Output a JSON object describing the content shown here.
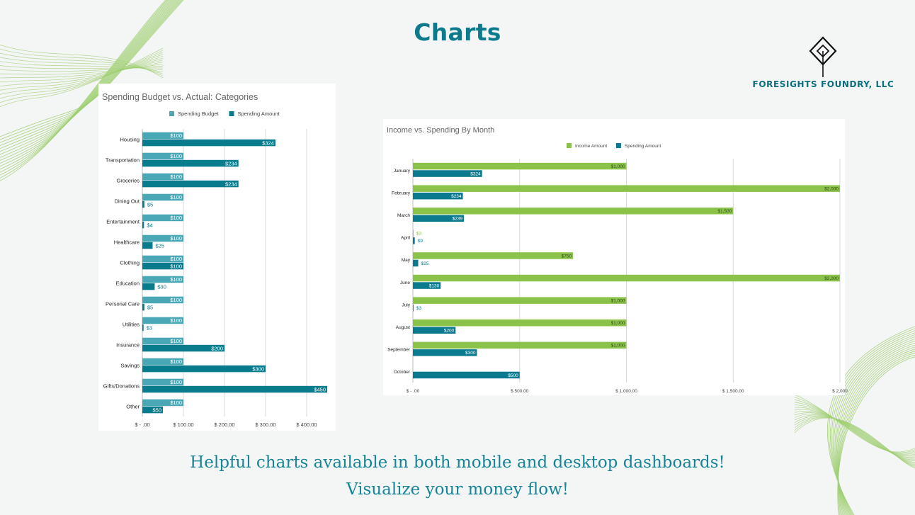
{
  "slide": {
    "title": "Charts",
    "company": "FORESIGHTS FOUNDRY, LLC",
    "caption_line1": "Helpful charts available in both mobile and desktop dashboards!",
    "caption_line2": "Visualize your money flow!"
  },
  "colors": {
    "accent": "#0c7a8c",
    "budget_bar": "#4aa7b5",
    "spending_bar": "#087b8c",
    "income_bar": "#8bc34a",
    "month_spending_bar": "#0b7a8e",
    "decor_lines": "#9fcf72"
  },
  "chart_data": [
    {
      "type": "bar",
      "orientation": "horizontal",
      "title": "Spending Budget vs. Actual: Categories",
      "xlabel": "",
      "ylabel": "",
      "categories": [
        "Housing",
        "Transportation",
        "Groceries",
        "Dining Out",
        "Entertainment",
        "Healthcare",
        "Clothing",
        "Education",
        "Personal Care",
        "Utilities",
        "Insurance",
        "Savings",
        "Gifts/Donations",
        "Other"
      ],
      "series": [
        {
          "name": "Spending Budget",
          "values": [
            100,
            100,
            100,
            100,
            100,
            100,
            100,
            100,
            100,
            100,
            100,
            100,
            100,
            100
          ],
          "labels": [
            "$100",
            "$100",
            "$100",
            "$100",
            "$100",
            "$100",
            "$100",
            "$100",
            "$100",
            "$100",
            "$100",
            "$100",
            "$100",
            "$100"
          ]
        },
        {
          "name": "Spending Amount",
          "values": [
            324,
            234,
            234,
            5,
            4,
            25,
            100,
            30,
            5,
            3,
            200,
            300,
            450,
            50
          ],
          "labels": [
            "$324",
            "$234",
            "$234",
            "$5",
            "$4",
            "$25",
            "$100",
            "$30",
            "$5",
            "$3",
            "$200",
            "$300",
            "$450",
            "$50"
          ]
        }
      ],
      "xlim": [
        0,
        450
      ],
      "xticks": [
        0,
        100,
        200,
        300,
        400
      ],
      "xtick_labels": [
        "$ - .00",
        "$ 100.00",
        "$ 200.00",
        "$ 300.00",
        "$ 400.00"
      ],
      "grid": true,
      "legend": "top"
    },
    {
      "type": "bar",
      "orientation": "horizontal",
      "title": "Income vs. Spending By Month",
      "xlabel": "",
      "ylabel": "",
      "categories": [
        "January",
        "February",
        "March",
        "April",
        "May",
        "June",
        "July",
        "August",
        "September",
        "October"
      ],
      "series": [
        {
          "name": "Income Amount",
          "values": [
            1000,
            2000,
            1500,
            3,
            750,
            2000,
            1000,
            1000,
            1000,
            null
          ],
          "labels": [
            "$1,000",
            "$2,000",
            "$1,500",
            "$3",
            "$750",
            "$2,000",
            "$1,000",
            "$1,000",
            "$1,000",
            ""
          ]
        },
        {
          "name": "Spending Amount",
          "values": [
            324,
            234,
            239,
            9,
            25,
            130,
            3,
            200,
            300,
            500
          ],
          "labels": [
            "$324",
            "$234",
            "$239",
            "$9",
            "$25",
            "$130",
            "$3",
            "$200",
            "$300",
            "$500"
          ]
        }
      ],
      "xlim": [
        0,
        2000
      ],
      "xticks": [
        0,
        500,
        1000,
        1500,
        2000
      ],
      "xtick_labels": [
        "$ - .00",
        "$ 500.00",
        "$ 1,000.00",
        "$ 1,500.00",
        "$ 2,000"
      ],
      "grid": true,
      "legend": "top"
    }
  ]
}
